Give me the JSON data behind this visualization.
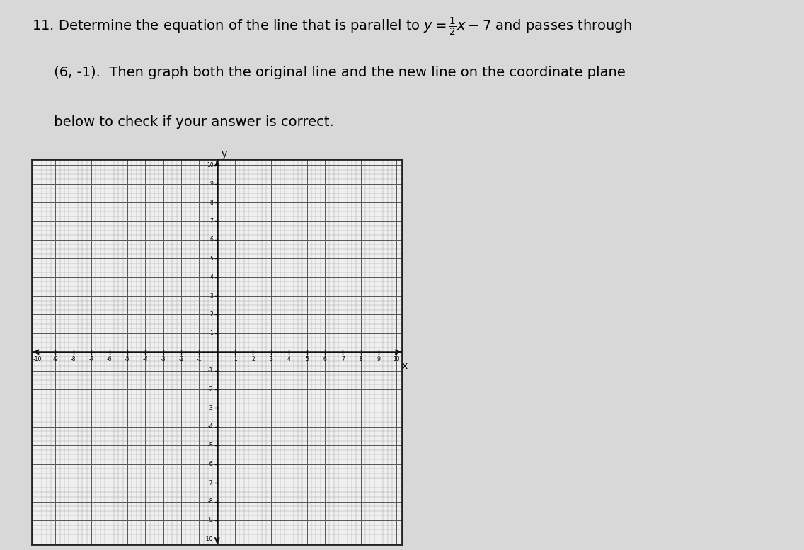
{
  "title_line1": "11. Determine the equation of the line that is parallel to $y = \\frac{1}{2}x - 7$ and passes through",
  "title_line2": "     (6, -1).  Then graph both the original line and the new line on the coordinate plane",
  "title_line3": "     below to check if your answer is correct.",
  "xmin": -10,
  "xmax": 10,
  "ymin": -10,
  "ymax": 10,
  "background_color": "#d8d8d8",
  "plot_bg_color": "#f0eff0",
  "grid_color": "#555555",
  "grid_minor_color": "#888888",
  "axis_color": "#111111",
  "border_color": "#222222",
  "title_fontsize": 14,
  "tick_fontsize": 5.5,
  "axis_label_fontsize": 10,
  "minor_per_major": 4
}
